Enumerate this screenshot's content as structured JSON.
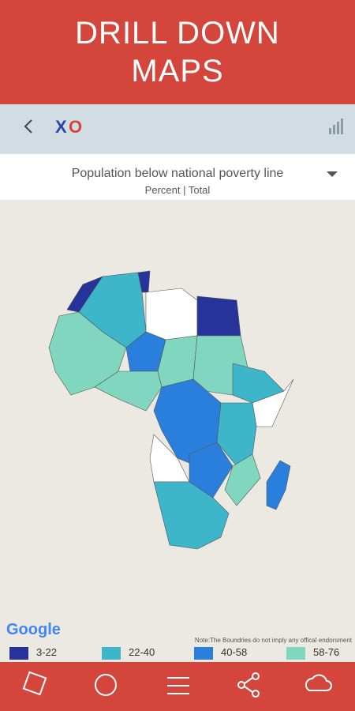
{
  "header": {
    "title_lines": [
      "DRILL DOWN",
      "MAPS"
    ]
  },
  "toolbar": {
    "logo_x": "X",
    "logo_o": "O"
  },
  "selector": {
    "title": "Population below national poverty line",
    "subtitle": "Percent | Total"
  },
  "map": {
    "attribution": "Google",
    "note": "Note:The Boundries do not imply any offical endorsment"
  },
  "legend": [
    {
      "label": "3-22",
      "color": "#25339a"
    },
    {
      "label": "22-40",
      "color": "#3cb6c8"
    },
    {
      "label": "40-58",
      "color": "#2a7fdc"
    },
    {
      "label": "58-76",
      "color": "#80d6bf"
    }
  ]
}
